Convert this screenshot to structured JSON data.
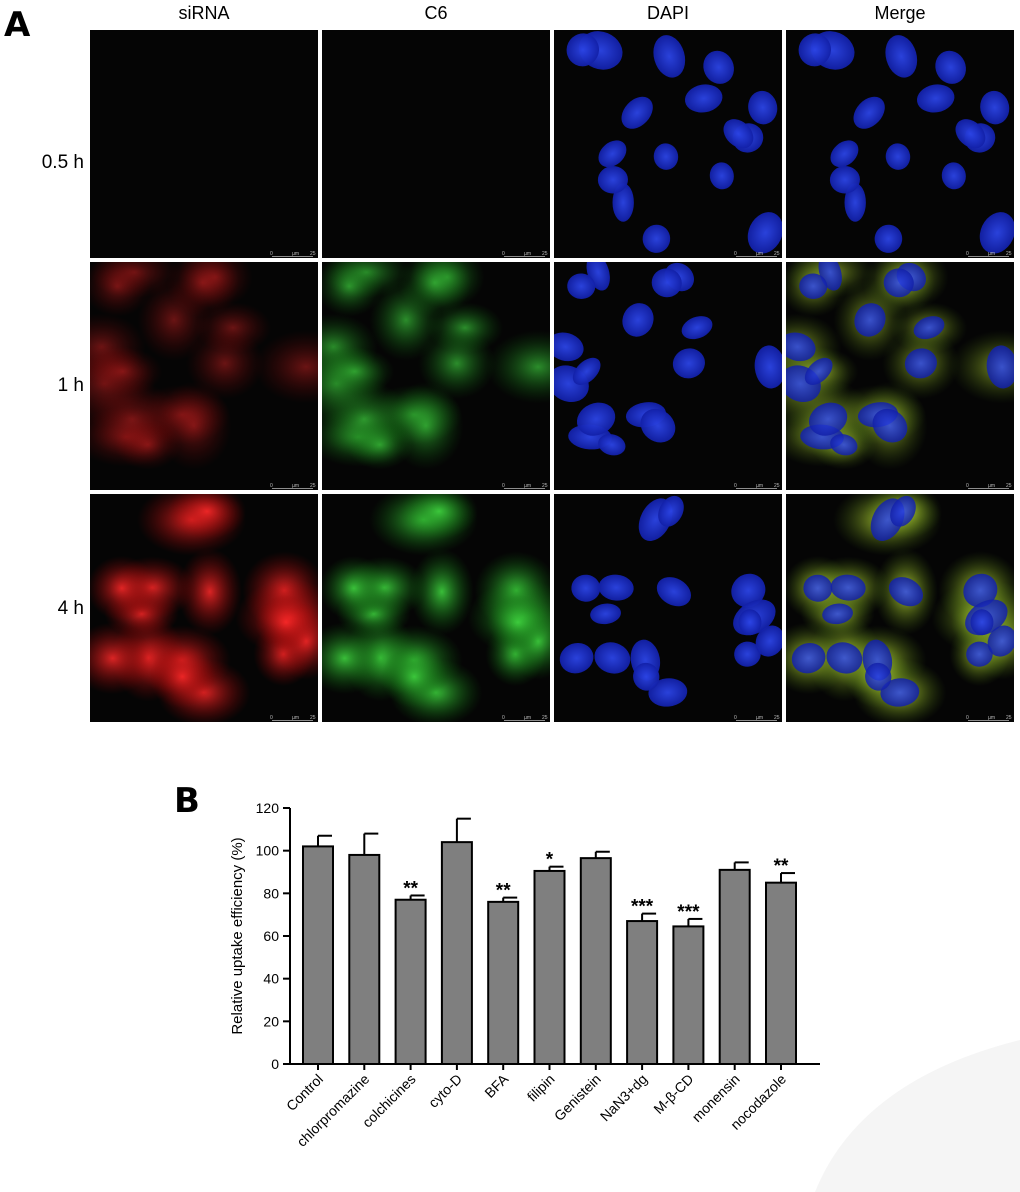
{
  "panel_a": {
    "letter": "A",
    "columns": [
      "siRNA",
      "C6",
      "DAPI",
      "Merge"
    ],
    "rows": [
      "0.5 h",
      "1 h",
      "4 h"
    ],
    "scale_bar": {
      "start": "0",
      "unit": "µm",
      "end": "25"
    }
  },
  "panel_b": {
    "letter": "B"
  },
  "chart_data": {
    "type": "bar",
    "title": "",
    "xlabel": "",
    "ylabel": "Relative uptake efficiency (%)",
    "ylim": [
      0,
      120
    ],
    "yticks": [
      0,
      20,
      40,
      60,
      80,
      100,
      120
    ],
    "categories": [
      "Control",
      "chlorpromazine",
      "colchicines",
      "cyto-D",
      "BFA",
      "filipin",
      "Genistein",
      "NaN3+dg",
      "M-β-CD",
      "monensin",
      "nocodazole"
    ],
    "values": [
      102,
      98,
      77,
      104,
      76,
      90.5,
      96.5,
      67,
      64.5,
      91,
      85
    ],
    "errors": [
      5,
      10,
      2,
      11,
      2,
      2,
      3,
      3.5,
      3.5,
      3.5,
      4.5
    ],
    "significance": [
      "",
      "",
      "**",
      "",
      "**",
      "*",
      "",
      "***",
      "***",
      "",
      "**"
    ],
    "bar_color": "#7f7f7f",
    "grid": false
  }
}
